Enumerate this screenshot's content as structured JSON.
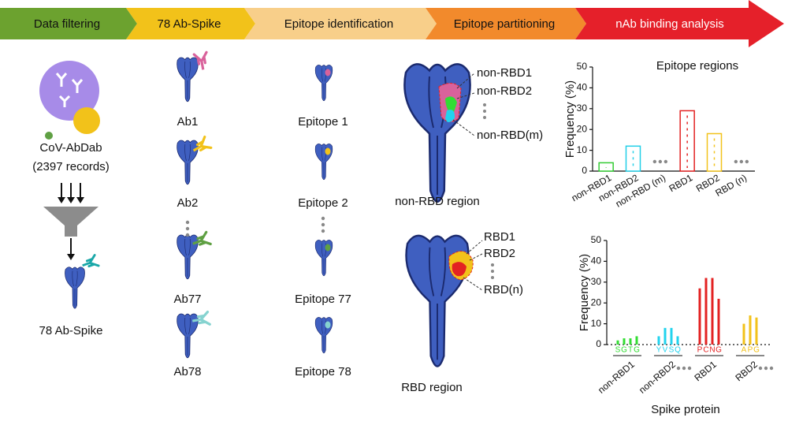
{
  "header": {
    "steps": [
      {
        "label": "Data filtering",
        "color": "#6ca22f"
      },
      {
        "label": "78 Ab-Spike",
        "color": "#f2c21a"
      },
      {
        "label": "Epitope identification",
        "color": "#f8cf8a"
      },
      {
        "label": "Epitope partitioning",
        "color": "#f28a2c"
      },
      {
        "label": "nAb binding analysis",
        "color": "#e5202a"
      }
    ]
  },
  "source": {
    "name": "CoV-AbDab",
    "records": "(2397 records)",
    "output": "78 Ab-Spike"
  },
  "antibodies": [
    {
      "label": "Ab1",
      "color": "#d9629b"
    },
    {
      "label": "Ab2",
      "color": "#f2c21a"
    },
    {
      "label": "Ab77",
      "color": "#5fa043"
    },
    {
      "label": "Ab78",
      "color": "#86d3d0"
    }
  ],
  "epitopes": [
    "Epitope 1",
    "Epitope 2",
    "Epitope 77",
    "Epitope 78"
  ],
  "partitions": {
    "non_rbd": {
      "labels": [
        "non-RBD1",
        "non-RBD2",
        "non-RBD(m)"
      ],
      "title": "non-RBD region"
    },
    "rbd": {
      "labels": [
        "RBD1",
        "RBD2",
        "RBD(n)"
      ],
      "title": "RBD region"
    }
  },
  "chart_data": [
    {
      "type": "bar",
      "title": "Epitope regions",
      "ylabel": "Frequency (%)",
      "categories": [
        "non-RBD1",
        "non-RBD2",
        "non-RBD (m)",
        "RBD1",
        "RBD2",
        "RBD (n)"
      ],
      "values": [
        4,
        12,
        null,
        29,
        18,
        null
      ],
      "colors": [
        "#33cc33",
        "#22cfe8",
        null,
        "#e32222",
        "#f2c21a",
        null
      ],
      "ylim": [
        0,
        50
      ],
      "yticks": [
        0,
        10,
        20,
        30,
        40,
        50
      ]
    },
    {
      "type": "grouped_bar",
      "ylabel": "Frequency (%)",
      "xlabel": "Spike protein",
      "groups": [
        {
          "name": "non-RBD1",
          "color": "#33dd33",
          "residues": [
            "S",
            "G",
            "T",
            "G"
          ],
          "values": [
            2,
            3,
            3,
            4
          ]
        },
        {
          "name": "non-RBD2",
          "color": "#22d3ee",
          "residues": [
            "Y",
            "V",
            "S",
            "Q"
          ],
          "values": [
            4,
            8,
            8,
            4
          ]
        },
        {
          "name": "RBD1",
          "color": "#e32222",
          "residues": [
            "P",
            "C",
            "N",
            "G"
          ],
          "values": [
            27,
            32,
            32,
            22
          ]
        },
        {
          "name": "RBD2",
          "color": "#f2c21a",
          "residues": [
            "A",
            "P",
            "G"
          ],
          "values": [
            10,
            14,
            13
          ]
        }
      ],
      "ylim": [
        0,
        50
      ],
      "yticks": [
        0,
        10,
        20,
        30,
        40,
        50
      ]
    }
  ]
}
